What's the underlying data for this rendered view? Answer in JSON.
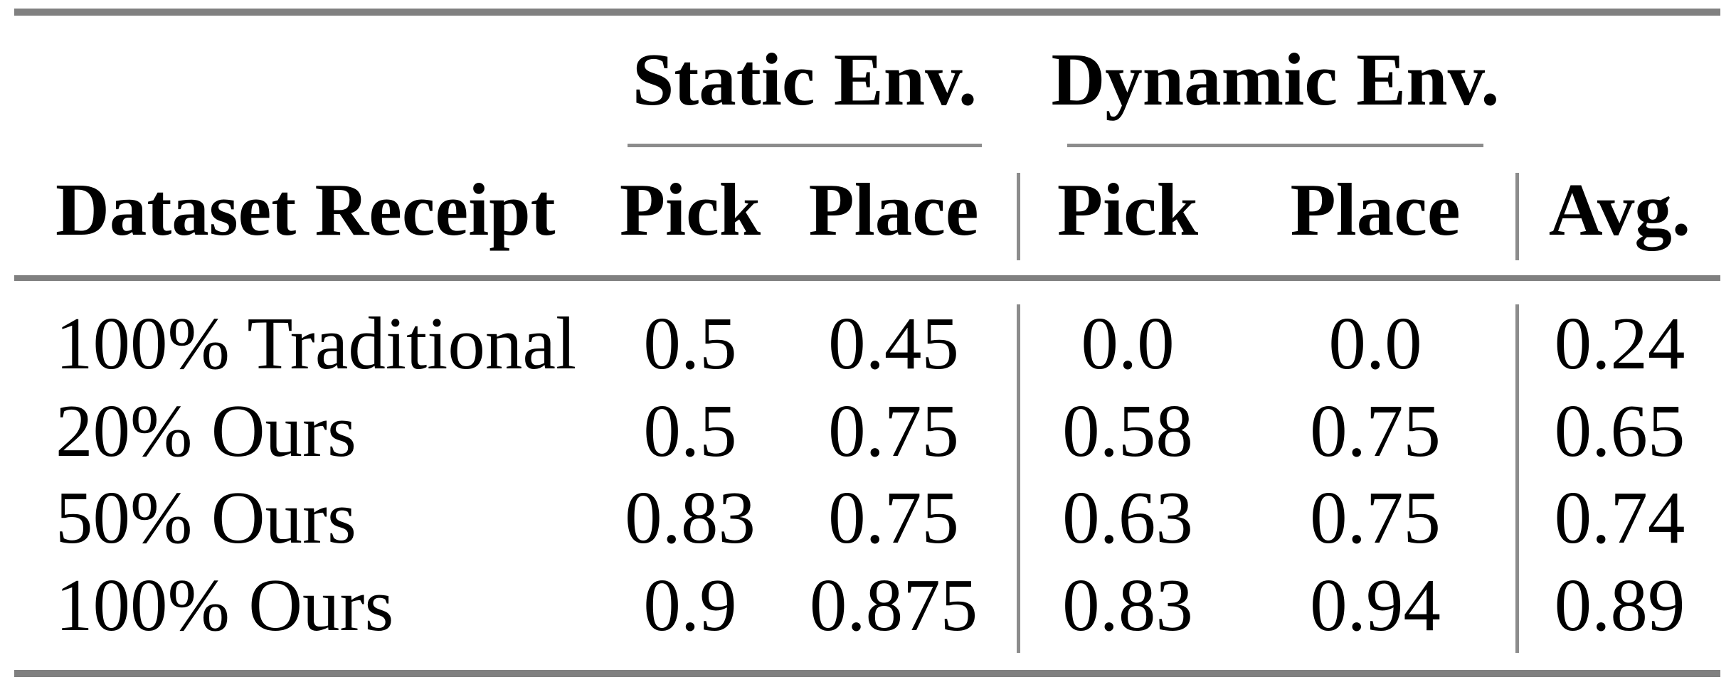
{
  "table": {
    "group_headers": {
      "static": "Static Env.",
      "dynamic": "Dynamic Env."
    },
    "column_headers": {
      "row_header": "Dataset Receipt",
      "static_pick": "Pick",
      "static_place": "Place",
      "dynamic_pick": "Pick",
      "dynamic_place": "Place",
      "avg": "Avg."
    },
    "rows": [
      {
        "label": "100% Traditional",
        "static_pick": "0.5",
        "static_place": "0.45",
        "dynamic_pick": "0.0",
        "dynamic_place": "0.0",
        "avg": "0.24"
      },
      {
        "label": "20% Ours",
        "static_pick": "0.5",
        "static_place": "0.75",
        "dynamic_pick": "0.58",
        "dynamic_place": "0.75",
        "avg": "0.65"
      },
      {
        "label": "50% Ours",
        "static_pick": "0.83",
        "static_place": "0.75",
        "dynamic_pick": "0.63",
        "dynamic_place": "0.75",
        "avg": "0.74"
      },
      {
        "label": "100% Ours",
        "static_pick": "0.9",
        "static_place": "0.875",
        "dynamic_pick": "0.83",
        "dynamic_place": "0.94",
        "avg": "0.89"
      }
    ],
    "colors": {
      "rule_thick": "#808080",
      "rule_thin": "#8c8c8c",
      "text": "#000000",
      "background": "#ffffff"
    }
  }
}
